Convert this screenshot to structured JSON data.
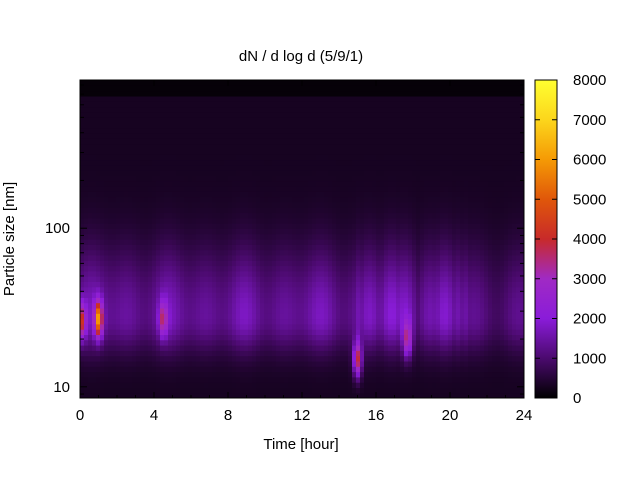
{
  "chart_data": {
    "type": "heatmap",
    "title": "dN / d log d (5/9/1)",
    "xlabel": "Time [hour]",
    "ylabel": "Particle size [nm]",
    "xlim": [
      0,
      24
    ],
    "ylim": [
      8.5,
      860
    ],
    "y_scale": "log",
    "x_ticks": [
      0,
      4,
      8,
      12,
      16,
      20,
      24
    ],
    "x_tick_labels": [
      "0",
      "4",
      "8",
      "12",
      "16",
      "20",
      "24"
    ],
    "y_ticks": [
      10,
      100
    ],
    "y_tick_labels": [
      "10",
      "100"
    ],
    "colorbar": {
      "range": [
        0,
        8000
      ],
      "ticks": [
        0,
        1000,
        2000,
        3000,
        4000,
        5000,
        6000,
        7000,
        8000
      ],
      "tick_labels": [
        "0",
        "1000",
        "2000",
        "3000",
        "4000",
        "5000",
        "6000",
        "7000",
        "8000"
      ],
      "colormap": [
        "#000000",
        "#4b0a6e",
        "#8a1cd9",
        "#a02ac4",
        "#c82a2a",
        "#e0570a",
        "#f59a05",
        "#fcd61c",
        "#ffff30"
      ]
    },
    "background_level": 700,
    "hot_spots": [
      {
        "time": 0.1,
        "size": 26,
        "value": 4200
      },
      {
        "time": 1.0,
        "size": 27,
        "value": 6000
      },
      {
        "time": 4.5,
        "size": 27,
        "value": 3600
      },
      {
        "time": 15.0,
        "size": 15,
        "value": 4800
      },
      {
        "time": 17.7,
        "size": 20,
        "value": 3800
      }
    ],
    "grid": false
  }
}
